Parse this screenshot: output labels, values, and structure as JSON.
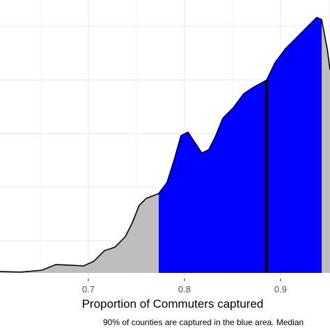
{
  "chart_data": {
    "type": "density",
    "x_label": "Proportion of Commuters captured",
    "caption": "90% of counties are captured in the blue area. Median",
    "x": [
      0.608,
      0.6297,
      0.6515,
      0.666,
      0.6805,
      0.695,
      0.7058,
      0.7167,
      0.7276,
      0.7384,
      0.7457,
      0.7529,
      0.7602,
      0.7732,
      0.7819,
      0.7892,
      0.7964,
      0.8037,
      0.8109,
      0.8181,
      0.8254,
      0.8326,
      0.8399,
      0.8508,
      0.8616,
      0.8725,
      0.8855,
      0.8942,
      0.9051,
      0.916,
      0.9268,
      0.9377,
      0.9428,
      0.9486,
      0.9515
    ],
    "values": [
      0.05,
      0.03,
      0.1,
      0.31,
      0.29,
      0.26,
      0.44,
      0.83,
      0.96,
      1.35,
      1.87,
      2.52,
      2.78,
      2.96,
      3.38,
      4.21,
      5.12,
      5.25,
      4.86,
      4.47,
      4.6,
      5.12,
      5.77,
      6.16,
      6.68,
      6.94,
      7.19,
      7.84,
      8.36,
      8.75,
      9.14,
      9.53,
      9.45,
      8.36,
      7.58
    ],
    "color": "#bebebe",
    "highlight": {
      "from": 0.7732,
      "to": 0.9428,
      "color": "#0000ff"
    },
    "median": 0.8855,
    "xlim": [
      0.608,
      0.9515
    ],
    "xticks": [
      0.7,
      0.8,
      0.9
    ],
    "xminor": [
      0.65,
      0.75,
      0.85,
      0.95
    ],
    "ylim": [
      0,
      10.18
    ],
    "yticks": [
      1.2,
      3.2,
      5.2,
      7.2,
      9.2
    ],
    "grid": true
  }
}
